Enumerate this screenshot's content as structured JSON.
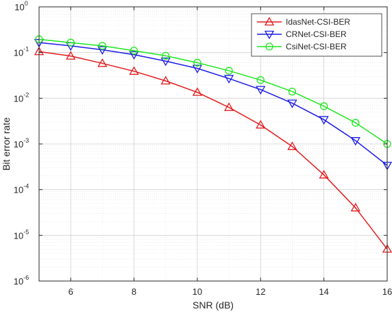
{
  "chart_data": {
    "type": "line",
    "xlabel": "SNR (dB)",
    "ylabel": "Bit error rate",
    "xlim": [
      5,
      16
    ],
    "ylim": [
      1e-06,
      1
    ],
    "yscale": "log",
    "grid": true,
    "minor_grid": true,
    "legend_position": "top-right",
    "x_ticks": [
      {
        "value": 6,
        "label": "6"
      },
      {
        "value": 8,
        "label": "8"
      },
      {
        "value": 10,
        "label": "10"
      },
      {
        "value": 12,
        "label": "12"
      },
      {
        "value": 14,
        "label": "14"
      },
      {
        "value": 16,
        "label": "16"
      }
    ],
    "y_ticks": [
      {
        "value": 1,
        "base": "10",
        "exp": "0"
      },
      {
        "value": 0.1,
        "base": "10",
        "exp": "-1"
      },
      {
        "value": 0.01,
        "base": "10",
        "exp": "-2"
      },
      {
        "value": 0.001,
        "base": "10",
        "exp": "-3"
      },
      {
        "value": 0.0001,
        "base": "10",
        "exp": "-4"
      },
      {
        "value": 1e-05,
        "base": "10",
        "exp": "-5"
      },
      {
        "value": 1e-06,
        "base": "10",
        "exp": "-6"
      }
    ],
    "x": [
      5,
      6,
      7,
      8,
      9,
      10,
      11,
      12,
      13,
      14,
      15,
      16
    ],
    "series": [
      {
        "name": "IdasNet-CSI-BER",
        "color": "#e41a1c",
        "marker": "triangle-up",
        "values": [
          0.105,
          0.084,
          0.058,
          0.039,
          0.024,
          0.0135,
          0.0063,
          0.0026,
          0.00088,
          0.00021,
          4e-05,
          5e-06
        ]
      },
      {
        "name": "CRNet-CSI-BER",
        "color": "#1a1ae6",
        "marker": "triangle-down",
        "values": [
          0.165,
          0.14,
          0.115,
          0.09,
          0.065,
          0.045,
          0.027,
          0.0155,
          0.0078,
          0.0034,
          0.00118,
          0.00034
        ]
      },
      {
        "name": "CsiNet-CSI-BER",
        "color": "#1ee61e",
        "marker": "circle",
        "values": [
          0.195,
          0.165,
          0.14,
          0.11,
          0.085,
          0.06,
          0.04,
          0.025,
          0.014,
          0.0067,
          0.0029,
          0.001
        ]
      }
    ]
  }
}
